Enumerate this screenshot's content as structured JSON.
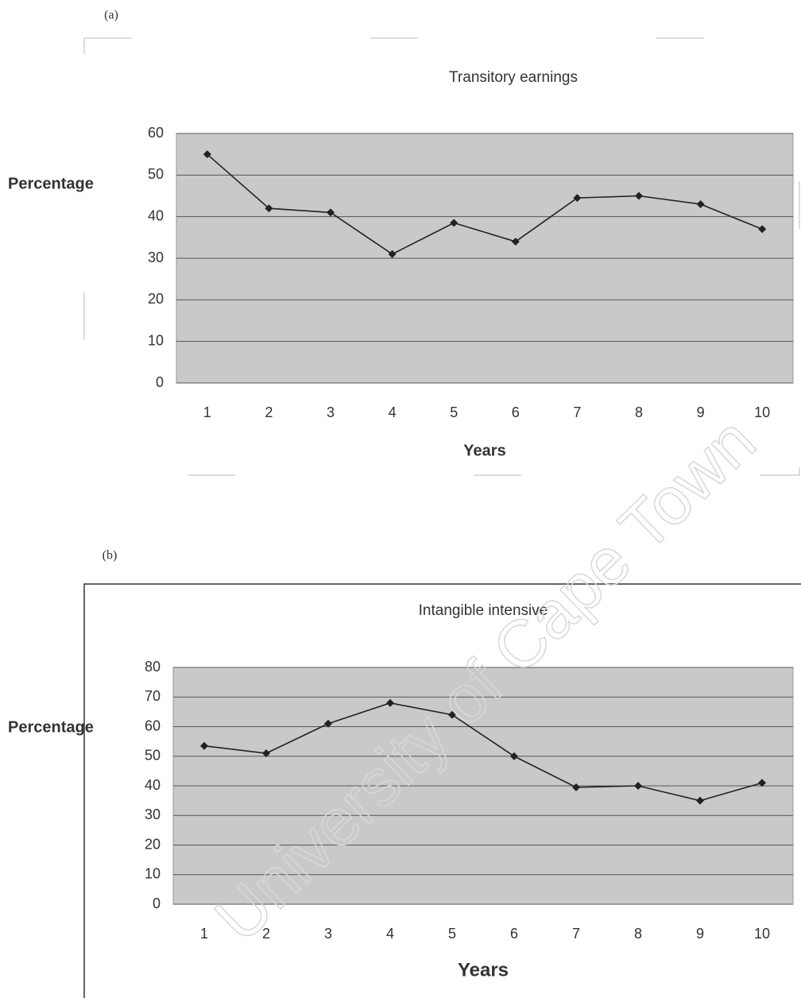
{
  "watermark": "University of Cape Town",
  "chart_data": [
    {
      "type": "line",
      "panel_label": "(a)",
      "title": "Transitory earnings",
      "x_label": "Years",
      "y_label": "Percentage",
      "categories": [
        "1",
        "2",
        "3",
        "4",
        "5",
        "6",
        "7",
        "8",
        "9",
        "10"
      ],
      "series": [
        {
          "color": "#222222",
          "values": [
            55,
            42,
            41,
            31,
            38.5,
            34,
            44.5,
            45,
            43,
            37
          ]
        }
      ],
      "ylim": [
        0,
        60
      ],
      "yticks": [
        0,
        10,
        20,
        30,
        40,
        50,
        60
      ],
      "grid": true
    },
    {
      "type": "line",
      "panel_label": "(b)",
      "title": "Intangible intensive",
      "x_label": "Years",
      "y_label": "Percentage",
      "categories": [
        "1",
        "2",
        "3",
        "4",
        "5",
        "6",
        "7",
        "8",
        "9",
        "10"
      ],
      "series": [
        {
          "color": "#222222",
          "values": [
            53.5,
            51,
            61,
            68,
            64,
            50,
            39.5,
            40,
            35,
            41
          ]
        }
      ],
      "ylim": [
        0,
        80
      ],
      "yticks": [
        0,
        10,
        20,
        30,
        40,
        50,
        60,
        70,
        80
      ],
      "grid": true
    }
  ]
}
